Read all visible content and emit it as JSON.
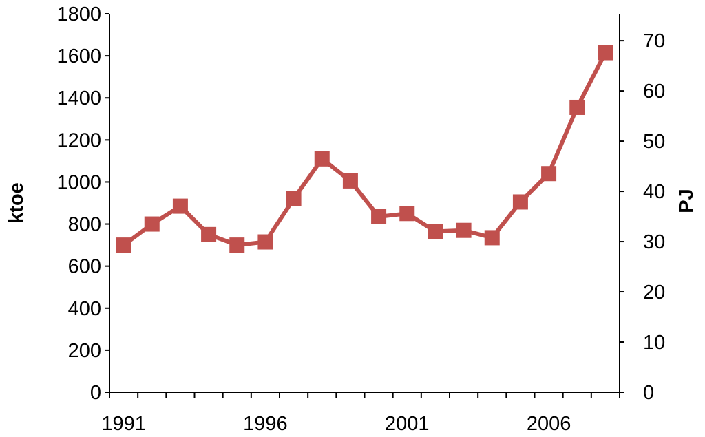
{
  "chart_data": {
    "type": "line",
    "title": "",
    "xlabel": "",
    "ylabel": "ktoe",
    "y2label": "PJ",
    "xlim": [
      1990.5,
      2008.5
    ],
    "ylim": [
      0,
      1800
    ],
    "y2lim": [
      0,
      75.36
    ],
    "x_tick_labels": [
      "1991",
      "1996",
      "2001",
      "2006"
    ],
    "y_ticks": [
      0,
      200,
      400,
      600,
      800,
      1000,
      1200,
      1400,
      1600,
      1800
    ],
    "y2_ticks": [
      0,
      10,
      20,
      30,
      40,
      50,
      60,
      70
    ],
    "grid": false,
    "legend": "none",
    "series_color": "#c0504d",
    "series": [
      {
        "x": [
          1991,
          1992,
          1993,
          1994,
          1995,
          1996,
          1997,
          1998,
          1999,
          2000,
          2001,
          2002,
          2003,
          2004,
          2005,
          2006,
          2007,
          2008
        ],
        "values": [
          700,
          800,
          885,
          750,
          700,
          715,
          920,
          1110,
          1005,
          835,
          850,
          765,
          770,
          735,
          905,
          1040,
          1355,
          1615
        ]
      }
    ]
  }
}
